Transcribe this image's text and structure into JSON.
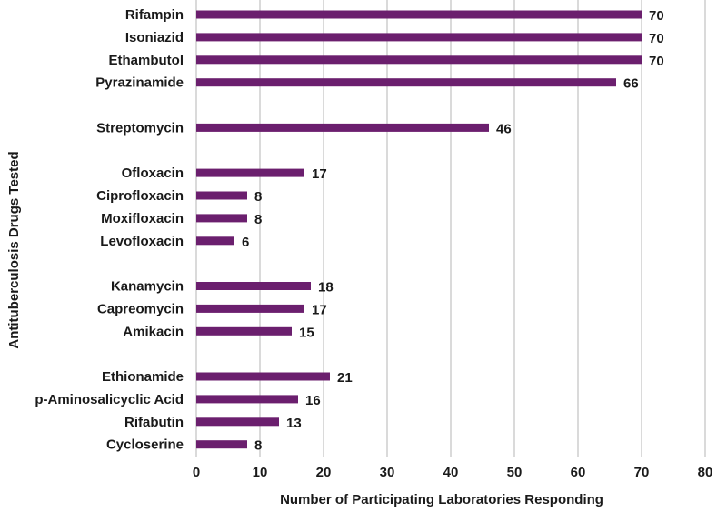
{
  "chart_data": {
    "type": "bar",
    "orientation": "horizontal",
    "categories": [
      "Rifampin",
      "Isoniazid",
      "Ethambutol",
      "Pyrazinamide",
      "Streptomycin",
      "Ofloxacin",
      "Ciprofloxacin",
      "Moxifloxacin",
      "Levofloxacin",
      "Kanamycin",
      "Capreomycin",
      "Amikacin",
      "Ethionamide",
      "p-Aminosalicyclic Acid",
      "Rifabutin",
      "Cycloserine"
    ],
    "groups": [
      [
        "Rifampin",
        "Isoniazid",
        "Ethambutol",
        "Pyrazinamide"
      ],
      [
        "Streptomycin"
      ],
      [
        "Ofloxacin",
        "Ciprofloxacin",
        "Moxifloxacin",
        "Levofloxacin"
      ],
      [
        "Kanamycin",
        "Capreomycin",
        "Amikacin"
      ],
      [
        "Ethionamide",
        "p-Aminosalicyclic Acid",
        "Rifabutin",
        "Cycloserine"
      ]
    ],
    "values": [
      70,
      70,
      70,
      66,
      46,
      17,
      8,
      8,
      6,
      18,
      17,
      15,
      21,
      16,
      13,
      8
    ],
    "xlabel": "Number of Participating Laboratories Responding",
    "ylabel": "Antituberculosis Drugs Tested",
    "xlim": [
      0,
      80
    ],
    "xticks": [
      0,
      10,
      20,
      30,
      40,
      50,
      60,
      70,
      80
    ],
    "grid": "vertical",
    "legend": "none",
    "bar_color": "#6b1f6e"
  }
}
